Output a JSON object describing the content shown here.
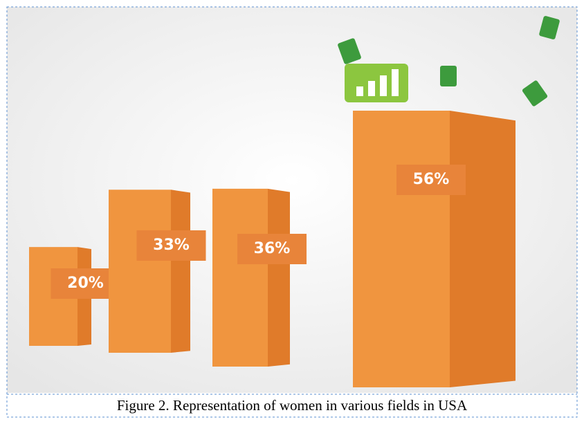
{
  "chart_data": {
    "type": "bar",
    "title": "Figure 2. Representation of women in various fields in USA",
    "categories": [
      null,
      null,
      null,
      null
    ],
    "values": [
      20,
      33,
      36,
      56
    ],
    "value_labels": [
      "20%",
      "33%",
      "36%",
      "56%"
    ],
    "color": "#f0953f"
  }
}
